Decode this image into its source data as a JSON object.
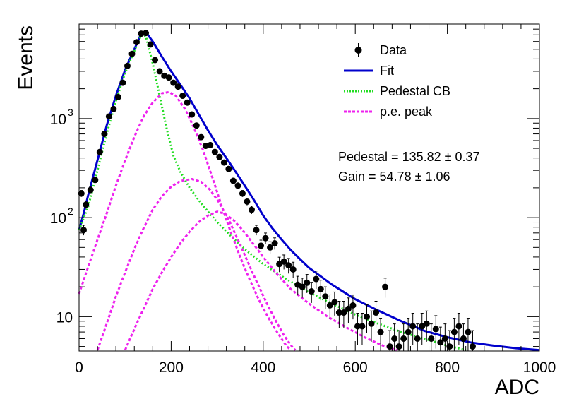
{
  "chart_data": {
    "type": "scatter",
    "xlabel": "ADC",
    "ylabel": "Events",
    "xlim": [
      0,
      1000
    ],
    "ylim": [
      4.5,
      9000
    ],
    "y_scale": "log",
    "grid": false,
    "legend_position": "top-right",
    "x_ticks": [
      0,
      200,
      400,
      600,
      800,
      1000
    ],
    "x_tick_labels": [
      "0",
      "200",
      "400",
      "600",
      "800",
      "1000"
    ],
    "y_ticks": [
      10,
      100,
      1000
    ],
    "y_tick_labels": [
      "10",
      "10",
      "10"
    ],
    "y_tick_exponents": [
      "",
      "2",
      "3"
    ],
    "legend": [
      {
        "label": "Data",
        "style": "marker",
        "color": "#000000"
      },
      {
        "label": "Fit",
        "style": "solid",
        "color": "#0000cc"
      },
      {
        "label": "Pedestal CB",
        "style": "dotted",
        "color": "#22dd22"
      },
      {
        "label": "p.e. peak",
        "style": "dashed",
        "color": "#ee22ee"
      }
    ],
    "annotations": [
      "Pedestal = 135.82 ± 0.37",
      "Gain = 54.78 ± 1.06"
    ],
    "series": [
      {
        "name": "Data",
        "kind": "points_with_errors",
        "color": "#000000",
        "points": [
          [
            5,
            175
          ],
          [
            10,
            75
          ],
          [
            15,
            135
          ],
          [
            25,
            190
          ],
          [
            35,
            240
          ],
          [
            45,
            460
          ],
          [
            55,
            700
          ],
          [
            65,
            1050
          ],
          [
            75,
            1250
          ],
          [
            85,
            1650
          ],
          [
            95,
            2300
          ],
          [
            105,
            3400
          ],
          [
            115,
            4500
          ],
          [
            125,
            5900
          ],
          [
            135,
            7200
          ],
          [
            145,
            7300
          ],
          [
            155,
            5600
          ],
          [
            165,
            3900
          ],
          [
            175,
            3000
          ],
          [
            185,
            2700
          ],
          [
            195,
            2600
          ],
          [
            205,
            2300
          ],
          [
            215,
            2100
          ],
          [
            225,
            1700
          ],
          [
            235,
            1450
          ],
          [
            245,
            1100
          ],
          [
            255,
            850
          ],
          [
            265,
            650
          ],
          [
            275,
            530
          ],
          [
            285,
            540
          ],
          [
            295,
            460
          ],
          [
            305,
            410
          ],
          [
            315,
            360
          ],
          [
            325,
            310
          ],
          [
            335,
            235
          ],
          [
            345,
            210
          ],
          [
            355,
            175
          ],
          [
            365,
            145
          ],
          [
            375,
            120
          ],
          [
            385,
            75
          ],
          [
            395,
            52
          ],
          [
            405,
            62
          ],
          [
            415,
            50
          ],
          [
            425,
            55
          ],
          [
            435,
            34
          ],
          [
            445,
            36
          ],
          [
            455,
            33
          ],
          [
            465,
            30
          ],
          [
            475,
            21
          ],
          [
            485,
            20
          ],
          [
            495,
            22
          ],
          [
            505,
            18
          ],
          [
            515,
            24
          ],
          [
            525,
            19
          ],
          [
            535,
            16
          ],
          [
            545,
            13
          ],
          [
            555,
            14
          ],
          [
            565,
            11
          ],
          [
            575,
            11
          ],
          [
            585,
            12
          ],
          [
            595,
            13
          ],
          [
            605,
            8
          ],
          [
            615,
            8
          ],
          [
            625,
            10
          ],
          [
            635,
            8.5
          ],
          [
            645,
            11
          ],
          [
            655,
            7
          ],
          [
            665,
            20
          ],
          [
            675,
            5
          ],
          [
            685,
            6
          ],
          [
            695,
            5
          ],
          [
            705,
            6
          ],
          [
            715,
            7
          ],
          [
            725,
            8
          ],
          [
            735,
            6
          ],
          [
            745,
            8
          ],
          [
            755,
            8.5
          ],
          [
            765,
            6
          ],
          [
            775,
            7.5
          ],
          [
            785,
            5.5
          ],
          [
            795,
            6
          ],
          [
            805,
            5
          ],
          [
            815,
            7
          ],
          [
            825,
            8
          ],
          [
            835,
            6
          ],
          [
            845,
            7
          ],
          [
            855,
            5
          ]
        ]
      },
      {
        "name": "Fit",
        "kind": "curve",
        "color": "#0000cc",
        "points": [
          [
            0,
            75
          ],
          [
            10,
            110
          ],
          [
            20,
            170
          ],
          [
            40,
            380
          ],
          [
            60,
            850
          ],
          [
            80,
            1700
          ],
          [
            100,
            3100
          ],
          [
            120,
            5000
          ],
          [
            135,
            7200
          ],
          [
            145,
            7500
          ],
          [
            160,
            6000
          ],
          [
            180,
            4200
          ],
          [
            200,
            3000
          ],
          [
            220,
            2200
          ],
          [
            240,
            1600
          ],
          [
            260,
            1100
          ],
          [
            280,
            760
          ],
          [
            300,
            540
          ],
          [
            320,
            400
          ],
          [
            340,
            290
          ],
          [
            360,
            210
          ],
          [
            380,
            150
          ],
          [
            400,
            105
          ],
          [
            420,
            78
          ],
          [
            440,
            60
          ],
          [
            460,
            47
          ],
          [
            480,
            38
          ],
          [
            500,
            31
          ],
          [
            550,
            21
          ],
          [
            600,
            15
          ],
          [
            650,
            11.5
          ],
          [
            700,
            9
          ],
          [
            750,
            7.2
          ],
          [
            800,
            6.2
          ],
          [
            850,
            5.5
          ],
          [
            900,
            5.1
          ],
          [
            950,
            4.8
          ],
          [
            1000,
            4.6
          ]
        ]
      },
      {
        "name": "Pedestal CB",
        "kind": "curve",
        "color": "#22dd22",
        "points": [
          [
            0,
            75
          ],
          [
            20,
            130
          ],
          [
            40,
            300
          ],
          [
            60,
            700
          ],
          [
            80,
            1500
          ],
          [
            100,
            2900
          ],
          [
            120,
            4800
          ],
          [
            135,
            7000
          ],
          [
            145,
            6800
          ],
          [
            160,
            3600
          ],
          [
            175,
            1700
          ],
          [
            190,
            800
          ],
          [
            205,
            420
          ],
          [
            220,
            290
          ],
          [
            240,
            200
          ],
          [
            260,
            150
          ],
          [
            280,
            115
          ],
          [
            300,
            90
          ],
          [
            330,
            65
          ],
          [
            360,
            48
          ],
          [
            400,
            34
          ],
          [
            450,
            24
          ],
          [
            500,
            17.5
          ],
          [
            550,
            13.5
          ],
          [
            600,
            10.5
          ],
          [
            650,
            8.5
          ],
          [
            700,
            7
          ],
          [
            750,
            6
          ],
          [
            800,
            5.1
          ],
          [
            840,
            4.6
          ]
        ]
      },
      {
        "name": "p.e. peak 1",
        "kind": "curve",
        "color": "#ee22ee",
        "points": [
          [
            0,
            17
          ],
          [
            20,
            32
          ],
          [
            40,
            60
          ],
          [
            60,
            110
          ],
          [
            80,
            210
          ],
          [
            100,
            380
          ],
          [
            120,
            650
          ],
          [
            140,
            1050
          ],
          [
            160,
            1450
          ],
          [
            180,
            1800
          ],
          [
            195,
            1850
          ],
          [
            210,
            1700
          ],
          [
            230,
            1250
          ],
          [
            250,
            800
          ],
          [
            270,
            470
          ],
          [
            290,
            250
          ],
          [
            310,
            130
          ],
          [
            330,
            70
          ],
          [
            350,
            40
          ],
          [
            370,
            24
          ],
          [
            390,
            15
          ],
          [
            410,
            10
          ],
          [
            430,
            7
          ],
          [
            450,
            5.1
          ],
          [
            460,
            4.6
          ]
        ]
      },
      {
        "name": "p.e. peak 2",
        "kind": "curve",
        "color": "#ee22ee",
        "points": [
          [
            40,
            4.6
          ],
          [
            60,
            8.5
          ],
          [
            80,
            16
          ],
          [
            100,
            28
          ],
          [
            120,
            48
          ],
          [
            140,
            78
          ],
          [
            160,
            120
          ],
          [
            180,
            165
          ],
          [
            200,
            205
          ],
          [
            220,
            235
          ],
          [
            245,
            245
          ],
          [
            265,
            230
          ],
          [
            285,
            190
          ],
          [
            305,
            140
          ],
          [
            325,
            95
          ],
          [
            345,
            60
          ],
          [
            365,
            37
          ],
          [
            385,
            23
          ],
          [
            405,
            14.5
          ],
          [
            425,
            9.5
          ],
          [
            445,
            6.5
          ],
          [
            465,
            4.8
          ],
          [
            470,
            4.6
          ]
        ]
      },
      {
        "name": "p.e. peak 3",
        "kind": "curve",
        "color": "#ee22ee",
        "points": [
          [
            100,
            4.6
          ],
          [
            120,
            7.5
          ],
          [
            140,
            12
          ],
          [
            160,
            19
          ],
          [
            180,
            28
          ],
          [
            200,
            40
          ],
          [
            220,
            55
          ],
          [
            240,
            72
          ],
          [
            260,
            90
          ],
          [
            280,
            105
          ],
          [
            300,
            115
          ],
          [
            315,
            110
          ],
          [
            335,
            95
          ],
          [
            355,
            75
          ],
          [
            375,
            57
          ],
          [
            400,
            40
          ],
          [
            430,
            27
          ],
          [
            460,
            19
          ],
          [
            500,
            13.5
          ],
          [
            540,
            10
          ],
          [
            580,
            7.8
          ],
          [
            620,
            6.2
          ],
          [
            660,
            5.1
          ],
          [
            690,
            4.6
          ]
        ]
      }
    ]
  }
}
